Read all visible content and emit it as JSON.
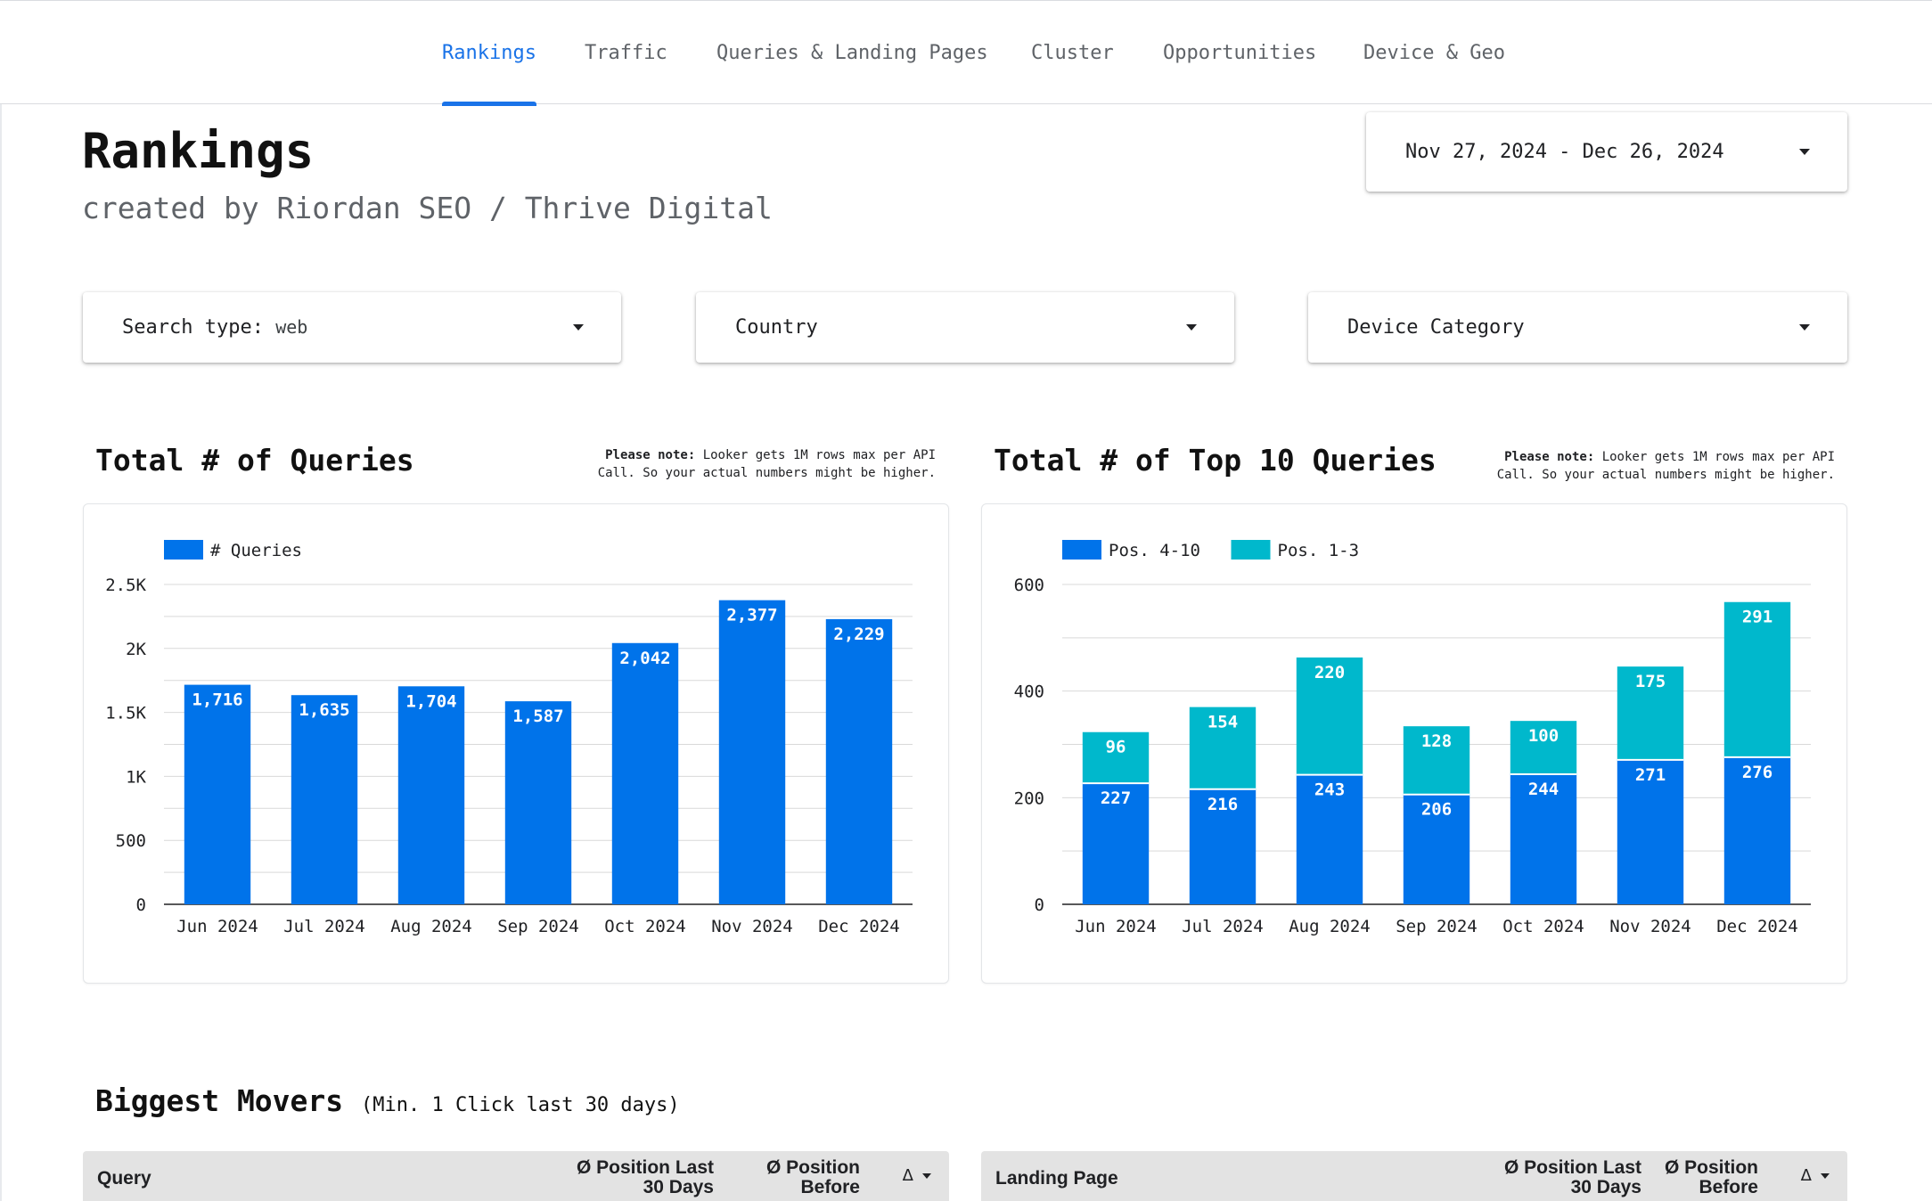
{
  "nav": {
    "tabs": [
      {
        "label": "Rankings",
        "active": true
      },
      {
        "label": "Traffic",
        "active": false
      },
      {
        "label": "Queries & Landing Pages",
        "active": false
      },
      {
        "label": "Cluster",
        "active": false
      },
      {
        "label": "Opportunities",
        "active": false
      },
      {
        "label": "Device & Geo",
        "active": false
      }
    ]
  },
  "header": {
    "title": "Rankings",
    "subtitle": "created by Riordan SEO / Thrive Digital"
  },
  "date_range": {
    "value": "Nov 27, 2024 - Dec 26, 2024"
  },
  "filters": {
    "search_type_label": "Search type:",
    "search_type_value": "web",
    "country_label": "Country",
    "device_label": "Device Category"
  },
  "note": {
    "bold": "Please note:",
    "line1": "Looker gets 1M rows max per API",
    "line2": "Call. So your actual numbers might be higher."
  },
  "chart_titles": {
    "queries": "Total # of Queries",
    "top10": "Total # of Top 10 Queries"
  },
  "chart_data": [
    {
      "type": "bar",
      "title": "Total # of Queries",
      "categories": [
        "Jun 2024",
        "Jul 2024",
        "Aug 2024",
        "Sep 2024",
        "Oct 2024",
        "Nov 2024",
        "Dec 2024"
      ],
      "series": [
        {
          "name": "# Queries",
          "values": [
            1716,
            1635,
            1704,
            1587,
            2042,
            2377,
            2229
          ]
        }
      ],
      "data_labels": [
        "1,716",
        "1,635",
        "1,704",
        "1,587",
        "2,042",
        "2,377",
        "2,229"
      ],
      "yticks": [
        0,
        500,
        1000,
        1500,
        2000,
        2500
      ],
      "ytick_labels": [
        "0",
        "500",
        "1K",
        "1.5K",
        "2K",
        "2.5K"
      ],
      "ylim": [
        0,
        2500
      ],
      "legend": "top-left",
      "colors": [
        "#0073ea"
      ]
    },
    {
      "type": "bar",
      "stacked": true,
      "title": "Total # of Top 10 Queries",
      "categories": [
        "Jun 2024",
        "Jul 2024",
        "Aug 2024",
        "Sep 2024",
        "Oct 2024",
        "Nov 2024",
        "Dec 2024"
      ],
      "series": [
        {
          "name": "Pos. 4-10",
          "values": [
            227,
            216,
            243,
            206,
            244,
            271,
            276
          ]
        },
        {
          "name": "Pos. 1-3",
          "values": [
            96,
            154,
            220,
            128,
            100,
            175,
            291
          ]
        }
      ],
      "yticks": [
        0,
        200,
        400,
        600
      ],
      "ytick_labels": [
        "0",
        "200",
        "400",
        "600"
      ],
      "ylim": [
        0,
        600
      ],
      "legend": "top-left",
      "colors": [
        "#0073ea",
        "#00b8cc"
      ]
    }
  ],
  "movers": {
    "title": "Biggest Movers",
    "subtitle": "(Min. 1 Click last 30 days)",
    "left_table": {
      "col1": "Query",
      "col2_line1": "Ø Position Last",
      "col2_line2": "30 Days",
      "col3_line1": "Ø Position",
      "col3_line2": "Before",
      "col4": "Δ"
    },
    "right_table": {
      "col1": "Landing Page",
      "col2_line1": "Ø Position Last",
      "col2_line2": "30 Days",
      "col3_line1": "Ø Position",
      "col3_line2": "Before",
      "col4": "Δ"
    }
  }
}
